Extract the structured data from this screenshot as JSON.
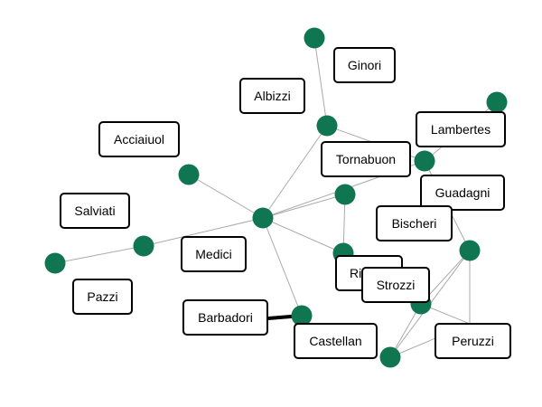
{
  "graph": {
    "colors": {
      "node": "#107652",
      "edge": "#aaaaaa",
      "highlight_edge": "#000000",
      "label_border": "#000000",
      "background": "#ffffff"
    },
    "labels": {
      "ginori": "Ginori",
      "albizzi": "Albizzi",
      "acciaiuol": "Acciaiuol",
      "lambertes": "Lambertes",
      "tornabuon": "Tornabuon",
      "salviati": "Salviati",
      "guadagni": "Guadagni",
      "bischeri": "Bischeri",
      "medici": "Medici",
      "ridolfi": "Ri",
      "strozzi": "Strozzi",
      "pazzi": "Pazzi",
      "barbadori": "Barbadori",
      "castellan": "Castellan",
      "peruzzi": "Peruzzi"
    }
  }
}
